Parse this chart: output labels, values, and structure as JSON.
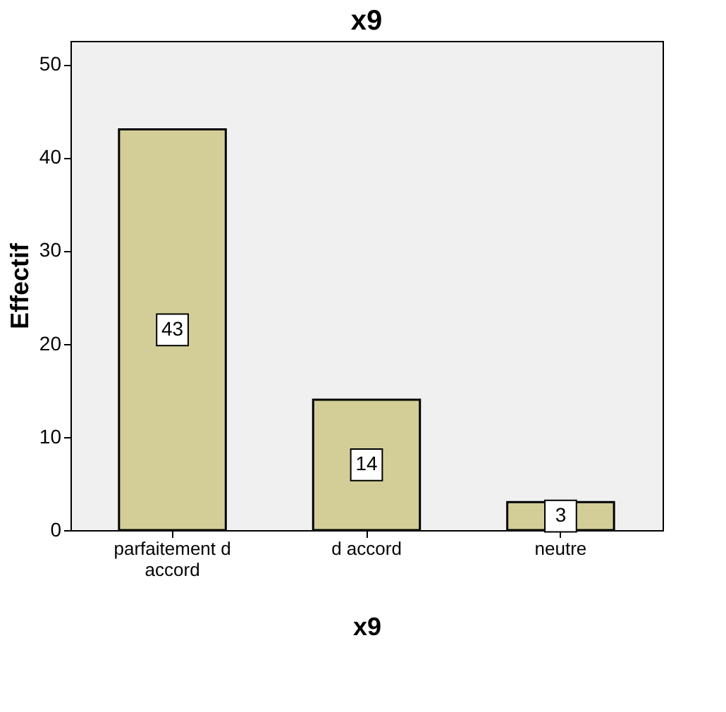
{
  "chart_data": {
    "type": "bar",
    "title": "x9",
    "xlabel": "x9",
    "ylabel": "Effectif",
    "categories": [
      "parfaitement d accord",
      "d accord",
      "neutre"
    ],
    "values": [
      43,
      14,
      3
    ],
    "color": "#d3ce97",
    "ylim": [
      0,
      52.5
    ],
    "yticks": [
      0,
      10,
      20,
      30,
      40,
      50
    ],
    "grid": false,
    "data_labels": true
  }
}
